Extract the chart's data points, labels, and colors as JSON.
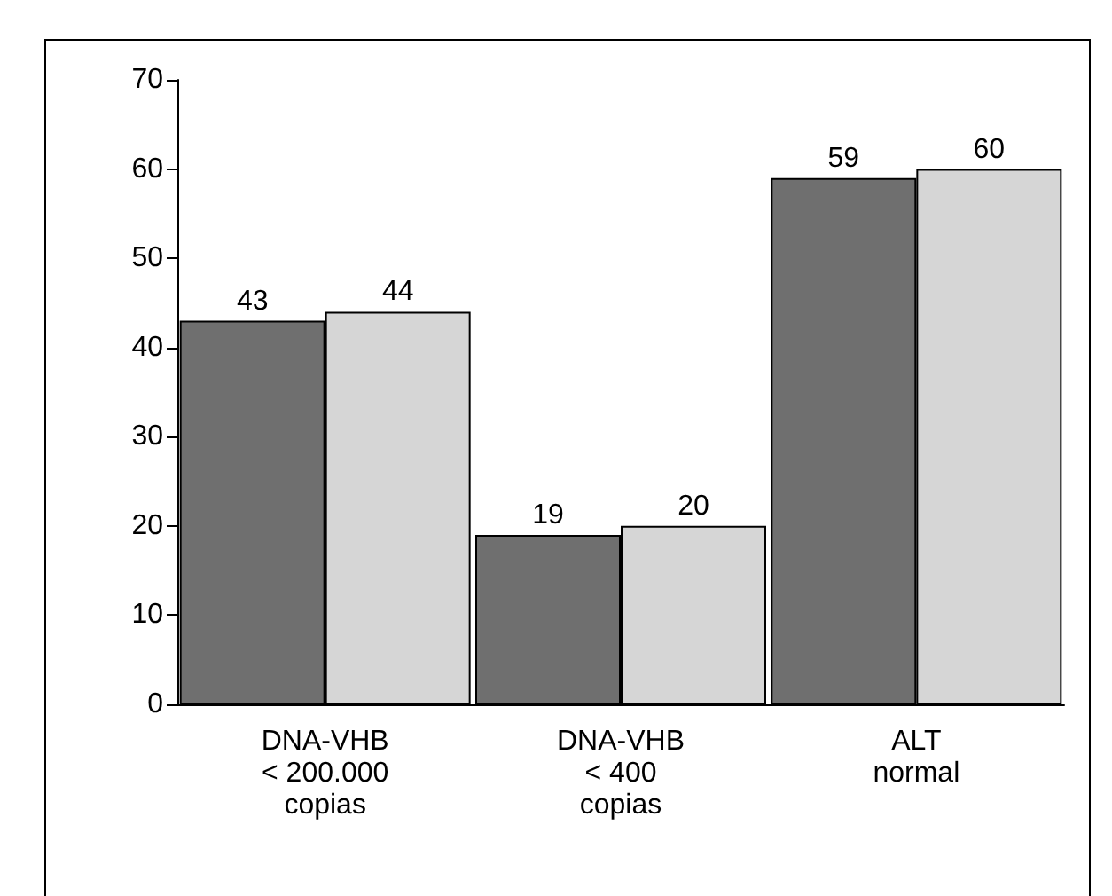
{
  "chart_data": {
    "type": "bar",
    "categories": [
      "DNA-VHB\n< 200.000\ncopias",
      "DNA-VHB\n< 400\ncopias",
      "ALT\nnormal"
    ],
    "series": [
      {
        "color": "#6f6f6f",
        "values": [
          43,
          19,
          59
        ]
      },
      {
        "color": "#d6d6d6",
        "values": [
          44,
          20,
          60
        ]
      }
    ],
    "ylim": [
      0,
      70
    ],
    "yticks": [
      0,
      10,
      20,
      30,
      40,
      50,
      60,
      70
    ],
    "data_labels": true
  }
}
